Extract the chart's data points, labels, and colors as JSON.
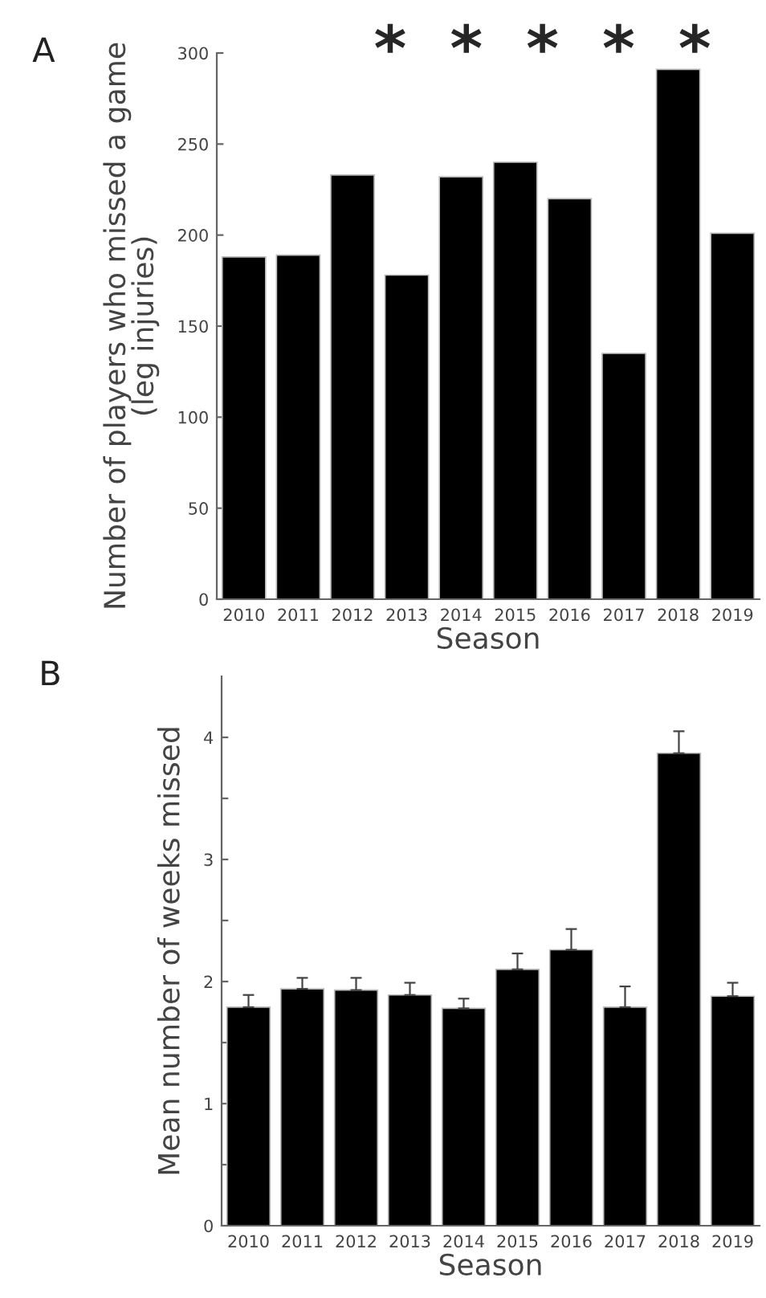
{
  "chart_data": [
    {
      "type": "bar",
      "title": "A",
      "xlabel": "Season",
      "ylabel": "Number of players who missed a game\n(leg injuries)",
      "categories": [
        "2010",
        "2011",
        "2012",
        "2013",
        "2014",
        "2015",
        "2016",
        "2017",
        "2018",
        "2019"
      ],
      "values": [
        188,
        189,
        233,
        178,
        232,
        240,
        220,
        135,
        291,
        201
      ],
      "color": "#000000",
      "ylim": [
        0,
        300
      ],
      "yticks": [
        0,
        50,
        100,
        150,
        200,
        250,
        300
      ],
      "grid": false,
      "annotations": [
        "*  *  *  *  *"
      ]
    },
    {
      "type": "bar",
      "title": "B",
      "xlabel": "Season",
      "ylabel": "Mean number of weeks missed",
      "categories": [
        "2010",
        "2011",
        "2012",
        "2013",
        "2014",
        "2015",
        "2016",
        "2017",
        "2018",
        "2019"
      ],
      "values": [
        1.79,
        1.94,
        1.93,
        1.89,
        1.78,
        2.1,
        2.26,
        1.79,
        3.87,
        1.88
      ],
      "color": "#000000",
      "errors": [
        [
          1.79,
          1.89
        ],
        [
          1.94,
          2.03
        ],
        [
          1.93,
          2.03
        ],
        [
          1.89,
          1.99
        ],
        [
          1.78,
          1.86
        ],
        [
          2.1,
          2.23
        ],
        [
          2.26,
          2.43
        ],
        [
          1.79,
          1.96
        ],
        [
          3.87,
          4.05
        ],
        [
          1.88,
          1.99
        ]
      ],
      "ylim": [
        0,
        4.5
      ],
      "yticks": [
        0,
        {
          "value": 0.5,
          "label": null
        },
        1,
        {
          "value": 1.5,
          "label": null
        },
        2,
        {
          "value": 2.5,
          "label": null
        },
        3,
        {
          "value": 3.5,
          "label": null
        },
        4
      ],
      "grid": false
    }
  ]
}
